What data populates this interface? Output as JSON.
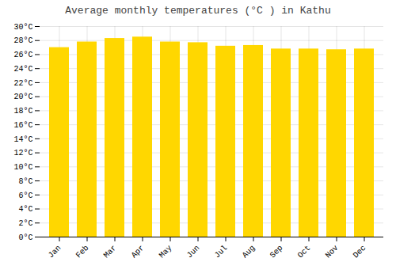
{
  "chart_data": {
    "type": "bar",
    "title": "Average monthly temperatures (°C ) in Kathu",
    "categories": [
      "Jan",
      "Feb",
      "Mar",
      "Apr",
      "May",
      "Jun",
      "Jul",
      "Aug",
      "Sep",
      "Oct",
      "Nov",
      "Dec"
    ],
    "values": [
      27.0,
      27.8,
      28.3,
      28.5,
      27.8,
      27.7,
      27.2,
      27.3,
      26.8,
      26.8,
      26.7,
      26.8
    ],
    "color": "#FFD700",
    "ylim": [
      0,
      30
    ],
    "yticks": [
      {
        "value": 0,
        "label": "0°C"
      },
      {
        "value": 2,
        "label": "2°C"
      },
      {
        "value": 4,
        "label": "4°C"
      },
      {
        "value": 6,
        "label": "6°C"
      },
      {
        "value": 8,
        "label": "8°C"
      },
      {
        "value": 10,
        "label": "10°C"
      },
      {
        "value": 12,
        "label": "12°C"
      },
      {
        "value": 14,
        "label": "14°C"
      },
      {
        "value": 16,
        "label": "16°C"
      },
      {
        "value": 18,
        "label": "18°C"
      },
      {
        "value": 20,
        "label": "20°C"
      },
      {
        "value": 22,
        "label": "22°C"
      },
      {
        "value": 24,
        "label": "24°C"
      },
      {
        "value": 26,
        "label": "26°C"
      },
      {
        "value": 28,
        "label": "28°C"
      },
      {
        "value": 30,
        "label": "30°C"
      }
    ],
    "grid": true
  }
}
